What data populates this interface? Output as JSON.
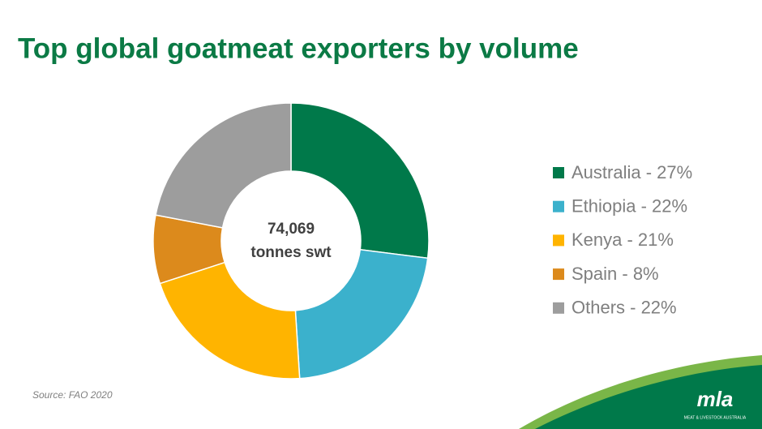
{
  "chart_data": {
    "type": "donut",
    "title": "Top global goatmeat exporters by volume",
    "categories": [
      "Australia - 27%",
      "Ethiopia - 22%",
      "Kenya - 21%",
      "Spain - 8%",
      "Others - 22%"
    ],
    "values": [
      27,
      22,
      21,
      8,
      22
    ],
    "colors": [
      "#00794a",
      "#3bb1cc",
      "#ffb400",
      "#dc8a1c",
      "#9d9d9d"
    ],
    "center_label": [
      "74,069",
      "tonnes swt"
    ],
    "legend": "right",
    "source": "Source: FAO 2020"
  },
  "logo": {
    "text": "mla",
    "subtitle": "MEAT & LIVESTOCK AUSTRALIA"
  }
}
